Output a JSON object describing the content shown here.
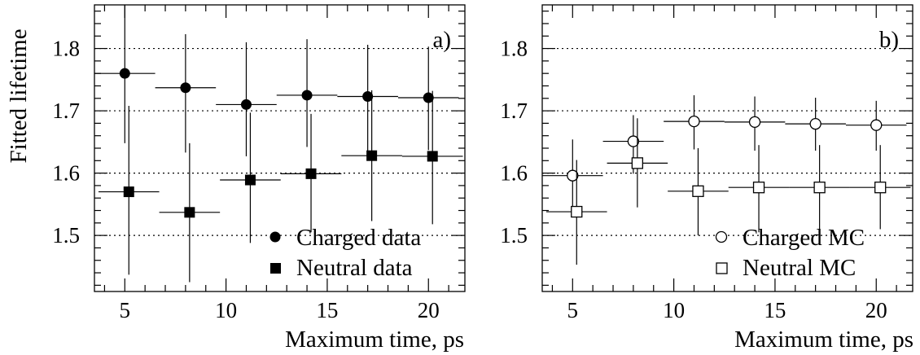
{
  "chart_data": [
    {
      "type": "scatter",
      "panel_label": "a)",
      "xlabel": "Maximum time, ps",
      "ylabel": "Fitted lifetime",
      "xlim": [
        3.5,
        21.8
      ],
      "ylim": [
        1.41,
        1.87
      ],
      "x_ticks": [
        5,
        10,
        15,
        20
      ],
      "y_ticks": [
        1.5,
        1.6,
        1.7,
        1.8
      ],
      "x_tick_labels": [
        "5",
        "10",
        "15",
        "20"
      ],
      "y_tick_labels": [
        "1.5",
        "1.6",
        "1.7",
        "1.8"
      ],
      "grid": "horizontal dotted",
      "legend_position": "bottom-right",
      "series": [
        {
          "name": "Charged data",
          "marker": "filled-circle",
          "points": [
            {
              "x": 5.0,
              "y": 1.76,
              "xerr": 1.5,
              "ylo": 1.648,
              "yhi": 1.87
            },
            {
              "x": 8.0,
              "y": 1.737,
              "xerr": 1.5,
              "ylo": 1.633,
              "yhi": 1.823
            },
            {
              "x": 11.0,
              "y": 1.71,
              "xerr": 1.5,
              "ylo": 1.627,
              "yhi": 1.81
            },
            {
              "x": 14.0,
              "y": 1.725,
              "xerr": 1.5,
              "ylo": 1.642,
              "yhi": 1.815
            },
            {
              "x": 17.0,
              "y": 1.723,
              "xerr": 1.5,
              "ylo": 1.633,
              "yhi": 1.806
            },
            {
              "x": 20.0,
              "y": 1.721,
              "xerr": 1.5,
              "ylo": 1.637,
              "yhi": 1.803
            }
          ]
        },
        {
          "name": "Neutral data",
          "marker": "filled-square",
          "points": [
            {
              "x": 5.2,
              "y": 1.57,
              "xerr": 1.5,
              "ylo": 1.437,
              "yhi": 1.708
            },
            {
              "x": 8.2,
              "y": 1.537,
              "xerr": 1.5,
              "ylo": 1.425,
              "yhi": 1.648
            },
            {
              "x": 11.2,
              "y": 1.589,
              "xerr": 1.5,
              "ylo": 1.488,
              "yhi": 1.697
            },
            {
              "x": 14.2,
              "y": 1.599,
              "xerr": 1.5,
              "ylo": 1.505,
              "yhi": 1.695
            },
            {
              "x": 17.2,
              "y": 1.628,
              "xerr": 1.5,
              "ylo": 1.523,
              "yhi": 1.733
            },
            {
              "x": 20.2,
              "y": 1.627,
              "xerr": 1.5,
              "ylo": 1.518,
              "yhi": 1.732
            }
          ]
        }
      ]
    },
    {
      "type": "scatter",
      "panel_label": "b)",
      "xlabel": "Maximum time, ps",
      "ylabel": "",
      "xlim": [
        3.5,
        21.8
      ],
      "ylim": [
        1.41,
        1.87
      ],
      "x_ticks": [
        5,
        10,
        15,
        20
      ],
      "y_ticks": [
        1.5,
        1.6,
        1.7,
        1.8
      ],
      "x_tick_labels": [
        "5",
        "10",
        "15",
        "20"
      ],
      "y_tick_labels": [
        "1.5",
        "1.6",
        "1.7",
        "1.8"
      ],
      "grid": "horizontal dotted",
      "legend_position": "bottom-right",
      "series": [
        {
          "name": "Charged MC",
          "marker": "open-circle",
          "points": [
            {
              "x": 5.0,
              "y": 1.596,
              "xerr": 1.5,
              "ylo": 1.537,
              "yhi": 1.654
            },
            {
              "x": 8.0,
              "y": 1.651,
              "xerr": 1.5,
              "ylo": 1.599,
              "yhi": 1.693
            },
            {
              "x": 11.0,
              "y": 1.683,
              "xerr": 1.5,
              "ylo": 1.638,
              "yhi": 1.725
            },
            {
              "x": 14.0,
              "y": 1.682,
              "xerr": 1.5,
              "ylo": 1.636,
              "yhi": 1.723
            },
            {
              "x": 17.0,
              "y": 1.679,
              "xerr": 1.5,
              "ylo": 1.636,
              "yhi": 1.721
            },
            {
              "x": 20.0,
              "y": 1.677,
              "xerr": 1.5,
              "ylo": 1.636,
              "yhi": 1.716
            }
          ]
        },
        {
          "name": "Neutral MC",
          "marker": "open-square",
          "points": [
            {
              "x": 5.2,
              "y": 1.538,
              "xerr": 1.5,
              "ylo": 1.453,
              "yhi": 1.621
            },
            {
              "x": 8.2,
              "y": 1.616,
              "xerr": 1.5,
              "ylo": 1.545,
              "yhi": 1.688
            },
            {
              "x": 11.2,
              "y": 1.571,
              "xerr": 1.5,
              "ylo": 1.5,
              "yhi": 1.64
            },
            {
              "x": 14.2,
              "y": 1.577,
              "xerr": 1.5,
              "ylo": 1.505,
              "yhi": 1.645
            },
            {
              "x": 17.2,
              "y": 1.577,
              "xerr": 1.5,
              "ylo": 1.508,
              "yhi": 1.645
            },
            {
              "x": 20.2,
              "y": 1.577,
              "xerr": 1.5,
              "ylo": 1.51,
              "yhi": 1.645
            }
          ]
        }
      ]
    }
  ]
}
